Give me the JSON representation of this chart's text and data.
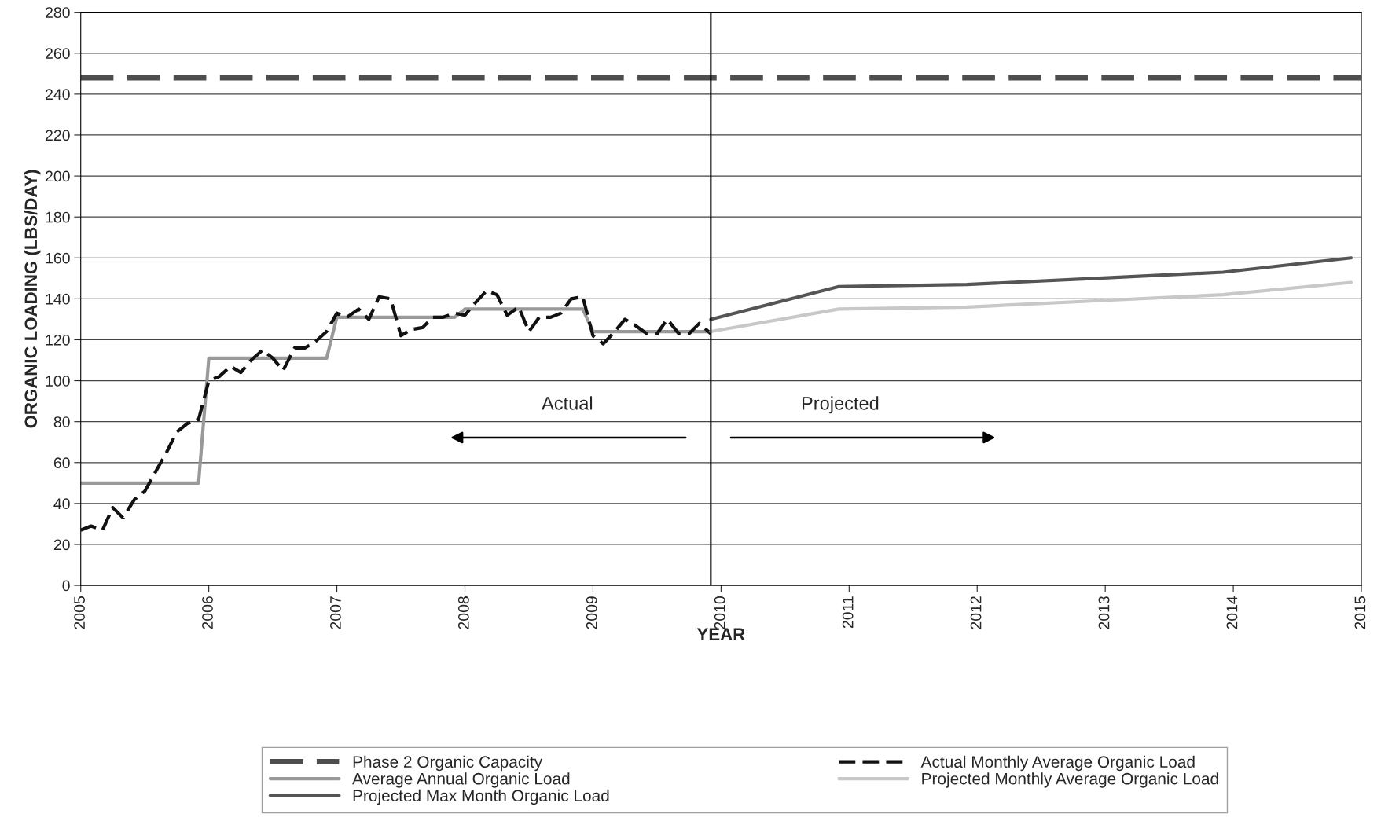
{
  "chart_data": {
    "type": "line",
    "xlabel": "YEAR",
    "ylabel": "ORGANIC LOADING (LBS/DAY)",
    "xlim": [
      2005,
      2015
    ],
    "xticks": [
      2005,
      2006,
      2007,
      2008,
      2009,
      2010,
      2011,
      2012,
      2013,
      2014,
      2015
    ],
    "ylim": [
      0,
      280
    ],
    "yticks": [
      0,
      20,
      40,
      60,
      80,
      100,
      120,
      140,
      160,
      180,
      200,
      220,
      240,
      260,
      280
    ],
    "grid": "y",
    "legend": "bottom",
    "marker": "none",
    "ref_lines": [
      {
        "axis": "x",
        "value": 2009.92,
        "color": "#000000",
        "line_style": "solid"
      }
    ],
    "annotations": [
      "Actual",
      "Projected"
    ],
    "series": [
      {
        "name": "Phase 2 Organic Capacity",
        "color": "#4d4d4d",
        "line_style": "dashed",
        "x": [
          2005,
          2015
        ],
        "values": [
          248,
          248
        ]
      },
      {
        "name": "Average Annual Organic Load",
        "color": "#999999",
        "line_style": "solid",
        "x": [
          2005.0,
          2005.92,
          2006.0,
          2006.92,
          2007.0,
          2007.92,
          2008.0,
          2008.92,
          2009.0,
          2009.92
        ],
        "values": [
          50,
          50,
          111,
          111,
          131,
          131,
          135,
          135,
          124,
          124
        ]
      },
      {
        "name": "Projected Max Month Organic Load",
        "color": "#555555",
        "line_style": "solid",
        "x": [
          2009.92,
          2010.92,
          2011.92,
          2012.92,
          2013.92,
          2014.92
        ],
        "values": [
          130,
          146,
          147,
          150,
          153,
          160
        ]
      },
      {
        "name": "Actual Monthly Average Organic Load",
        "color": "#111111",
        "line_style": "dashed",
        "x": [
          2005.0,
          2005.08,
          2005.17,
          2005.25,
          2005.33,
          2005.42,
          2005.5,
          2005.58,
          2005.67,
          2005.75,
          2005.83,
          2005.92,
          2006.0,
          2006.08,
          2006.17,
          2006.25,
          2006.33,
          2006.42,
          2006.5,
          2006.58,
          2006.67,
          2006.75,
          2006.83,
          2006.92,
          2007.0,
          2007.08,
          2007.17,
          2007.25,
          2007.33,
          2007.42,
          2007.5,
          2007.58,
          2007.67,
          2007.75,
          2007.83,
          2007.92,
          2008.0,
          2008.08,
          2008.17,
          2008.25,
          2008.33,
          2008.42,
          2008.5,
          2008.58,
          2008.67,
          2008.75,
          2008.83,
          2008.92,
          2009.0,
          2009.08,
          2009.17,
          2009.25,
          2009.33,
          2009.42,
          2009.5,
          2009.58,
          2009.67,
          2009.75,
          2009.83,
          2009.92
        ],
        "values": [
          27,
          29,
          27,
          38,
          33,
          42,
          46,
          55,
          65,
          75,
          79,
          81,
          100,
          102,
          107,
          104,
          110,
          115,
          111,
          105,
          116,
          116,
          119,
          124,
          133,
          131,
          135,
          130,
          141,
          140,
          122,
          125,
          126,
          131,
          131,
          133,
          132,
          138,
          144,
          142,
          132,
          136,
          124,
          131,
          131,
          133,
          140,
          141,
          122,
          118,
          124,
          130,
          127,
          123,
          123,
          130,
          123,
          123,
          128,
          123
        ]
      },
      {
        "name": "Projected Monthly Average Organic Load",
        "color": "#c8c8c8",
        "line_style": "solid",
        "x": [
          2009.92,
          2010.92,
          2011.92,
          2012.92,
          2013.92,
          2014.92
        ],
        "values": [
          124,
          135,
          136,
          139,
          142,
          148
        ]
      }
    ]
  }
}
